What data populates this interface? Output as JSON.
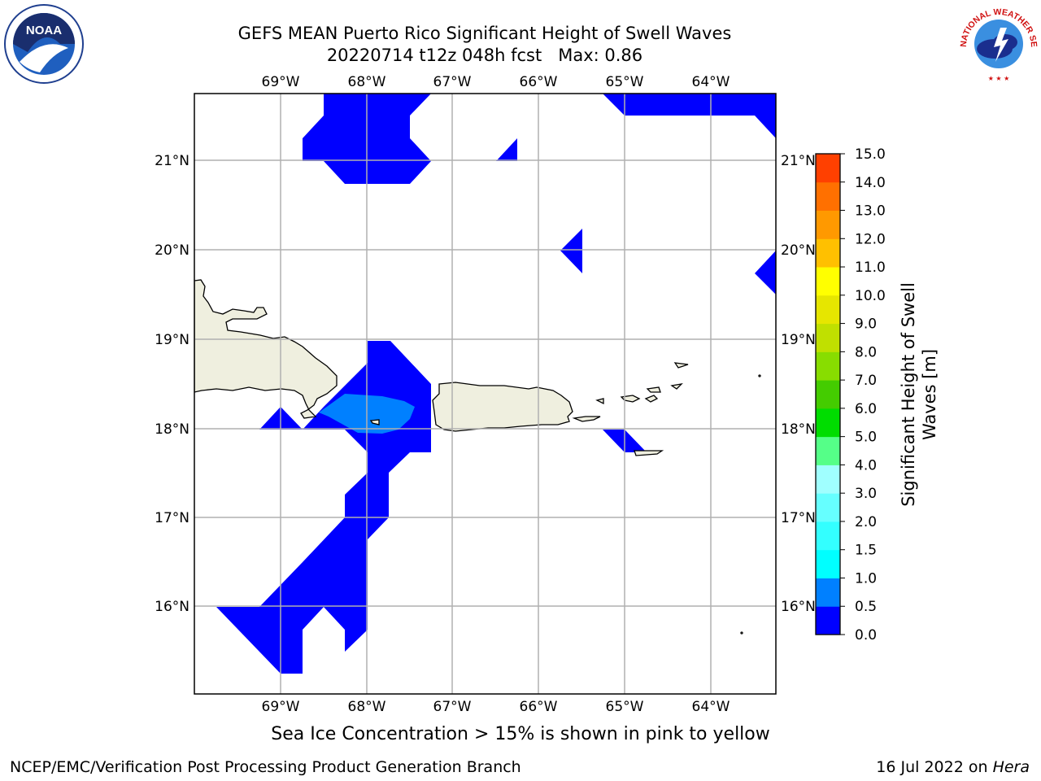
{
  "title": {
    "line1": "GEFS MEAN Puerto Rico Significant Height of Swell Waves",
    "line2": "20220714 t12z 048h fcst   Max: 0.86"
  },
  "map": {
    "lon_labels": [
      "69°W",
      "68°W",
      "67°W",
      "66°W",
      "65°W",
      "64°W"
    ],
    "lat_labels": [
      "21°N",
      "20°N",
      "19°N",
      "18°N",
      "17°N",
      "16°N"
    ],
    "land_color": "#efefdf",
    "water_color": "#ffffff",
    "grid_color": "#b0b0b0"
  },
  "colorbar": {
    "label": "Significant Height of Swell Waves [m]",
    "label_line1": "Significant Height of Swell",
    "label_line2": "Waves [m]",
    "ticks": [
      "0.0",
      "0.5",
      "1.0",
      "1.5",
      "2.0",
      "3.0",
      "4.0",
      "5.0",
      "6.0",
      "7.0",
      "8.0",
      "9.0",
      "10.0",
      "11.0",
      "12.0",
      "13.0",
      "14.0",
      "15.0"
    ],
    "colors": [
      "#0000ff",
      "#0080ff",
      "#00ddff",
      "#00ffff",
      "#33ffff",
      "#99ffff",
      "#55ff88",
      "#00ee00",
      "#44dd00",
      "#88dd00",
      "#bbdd00",
      "#dddd00",
      "#ffff00",
      "#ffd000",
      "#ffb000",
      "#ff8000",
      "#ff5000",
      "#ff2000",
      "#ff0000"
    ]
  },
  "note": "Sea Ice Concentration > 15% is shown in pink to yellow",
  "footer": {
    "left": "NCEP/EMC/Verification Post Processing Product Generation Branch",
    "right_date": "16 Jul 2022 on ",
    "right_host": "Hera"
  },
  "logos": {
    "noaa_text": "NOAA",
    "nws_text": "NATIONAL WEATHER SERVICE"
  }
}
